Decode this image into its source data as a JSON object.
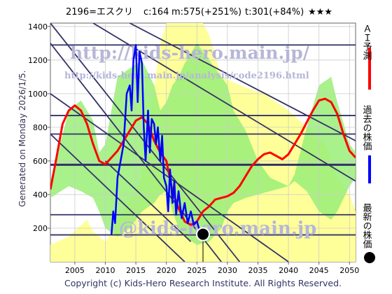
{
  "header": {
    "code_name": "2196=エスクリ",
    "current": "c:164",
    "min_target": "m:575(+251%)",
    "top_target": "t:301(+84%)",
    "rating": "★★★"
  },
  "side_left": "Generated on Monday 2026/1/5.",
  "legend_right": {
    "ai_forecast": "ＡＩ予測",
    "past_price": "過去の株価",
    "latest_price": "最新の株価"
  },
  "watermarks": {
    "main": "http://kids-hero.main.jp/",
    "sub": "http://kids-hero.main.jp/analysis/code2196.html",
    "bottom": "@kids-hero.main.jp"
  },
  "footer": "Copyright (c) Kids-Hero Research Institute. All Rights Reserved.",
  "colors": {
    "ai_forecast": "#ff0000",
    "past_price": "#0000ff",
    "latest_price": "#000000",
    "green_band": "#99ee77",
    "yellow_band": "#ffff99",
    "guide_lines": "#333366"
  },
  "chart_data": {
    "type": "line",
    "xlim": [
      2001,
      2051
    ],
    "ylim": [
      0,
      1420
    ],
    "x_ticks": [
      2005,
      2010,
      2015,
      2020,
      2025,
      2030,
      2035,
      2040,
      2045,
      2050
    ],
    "y_ticks": [
      200,
      400,
      600,
      800,
      1000,
      1200,
      1400
    ],
    "grid": true,
    "horizontal_levels": [
      160,
      280,
      575,
      580,
      760,
      870,
      1290
    ],
    "series": [
      {
        "name": "ＡＩ予測",
        "color": "#ff0000",
        "x": [
          2001,
          2002,
          2003,
          2004,
          2005,
          2006,
          2007,
          2008,
          2009,
          2010,
          2011,
          2012,
          2013,
          2014,
          2015,
          2016,
          2017,
          2018,
          2019,
          2020,
          2021,
          2022,
          2023,
          2024,
          2025,
          2026,
          2027,
          2028,
          2029,
          2030,
          2031,
          2032,
          2033,
          2034,
          2035,
          2036,
          2037,
          2038,
          2039,
          2040,
          2041,
          2042,
          2043,
          2044,
          2045,
          2046,
          2047,
          2048,
          2049,
          2050,
          2051
        ],
        "values": [
          430,
          620,
          820,
          900,
          930,
          900,
          820,
          700,
          600,
          580,
          620,
          660,
          720,
          780,
          840,
          860,
          820,
          720,
          650,
          600,
          420,
          320,
          240,
          220,
          240,
          300,
          330,
          370,
          380,
          390,
          410,
          450,
          510,
          570,
          610,
          640,
          650,
          630,
          610,
          640,
          700,
          760,
          830,
          900,
          960,
          970,
          950,
          880,
          760,
          660,
          620
        ]
      },
      {
        "name": "過去の株価",
        "color": "#0000ff",
        "x": [
          2011.0,
          2011.3,
          2011.6,
          2012.0,
          2012.5,
          2013.0,
          2013.5,
          2014.0,
          2014.3,
          2014.6,
          2015.0,
          2015.3,
          2015.6,
          2016.0,
          2016.3,
          2016.6,
          2017.0,
          2017.3,
          2017.6,
          2018.0,
          2018.3,
          2018.6,
          2019.0,
          2019.3,
          2019.6,
          2020.0,
          2020.3,
          2020.6,
          2021.0,
          2021.3,
          2021.6,
          2022.0,
          2022.5,
          2023.0,
          2023.5,
          2024.0,
          2024.5,
          2025.0,
          2025.5,
          2025.9
        ],
        "values": [
          160,
          300,
          230,
          500,
          600,
          700,
          1000,
          1050,
          900,
          1200,
          1290,
          950,
          1250,
          1180,
          800,
          600,
          900,
          650,
          850,
          820,
          700,
          800,
          600,
          750,
          500,
          450,
          300,
          550,
          350,
          480,
          280,
          420,
          260,
          350,
          230,
          300,
          220,
          240,
          180,
          200
        ]
      }
    ],
    "latest_point": {
      "x": 2026.0,
      "y": 164
    },
    "trend_lines": [
      {
        "from": [
          2001,
          1420
        ],
        "to": [
          2032,
          0
        ]
      },
      {
        "from": [
          2001,
          1300
        ],
        "to": [
          2029,
          0
        ]
      },
      {
        "from": [
          2001,
          1000
        ],
        "to": [
          2040,
          0
        ]
      },
      {
        "from": [
          2001,
          760
        ],
        "to": [
          2023,
          0
        ]
      },
      {
        "from": [
          2008,
          1420
        ],
        "to": [
          2051,
          480
        ]
      },
      {
        "from": [
          2014,
          1420
        ],
        "to": [
          2051,
          720
        ]
      },
      {
        "from": [
          2010,
          600
        ],
        "to": [
          2024,
          120
        ]
      }
    ],
    "green_band": {
      "x": [
        2001,
        2004,
        2006,
        2008,
        2009,
        2010,
        2012,
        2014,
        2016,
        2018,
        2019,
        2020,
        2021,
        2022,
        2023,
        2025,
        2027,
        2029,
        2030,
        2031,
        2033,
        2035,
        2037,
        2040,
        2041,
        2043,
        2045,
        2047,
        2048,
        2050,
        2051
      ],
      "upper": [
        480,
        900,
        960,
        840,
        650,
        700,
        1100,
        1150,
        1200,
        1050,
        900,
        950,
        1050,
        1100,
        1180,
        1300,
        1200,
        1100,
        1050,
        900,
        780,
        600,
        500,
        450,
        520,
        800,
        1050,
        1100,
        950,
        700,
        650
      ],
      "lower": [
        380,
        450,
        420,
        380,
        300,
        200,
        150,
        200,
        300,
        350,
        400,
        420,
        300,
        200,
        150,
        100,
        120,
        200,
        300,
        350,
        380,
        400,
        420,
        450,
        480,
        420,
        300,
        250,
        300,
        450,
        500
      ]
    },
    "yellow_band": {
      "x": [
        2001,
        2004,
        2007,
        2008,
        2010,
        2013,
        2016,
        2019,
        2020,
        2022,
        2024,
        2026,
        2027,
        2029,
        2032,
        2036,
        2040,
        2043,
        2046,
        2048,
        2050,
        2051
      ],
      "upper": [
        100,
        150,
        250,
        180,
        120,
        300,
        500,
        1300,
        1420,
        1420,
        1420,
        1420,
        1350,
        1100,
        1050,
        1000,
        900,
        800,
        700,
        500,
        400,
        300
      ],
      "lower": [
        0,
        0,
        0,
        0,
        0,
        0,
        0,
        0,
        0,
        0,
        0,
        0,
        0,
        0,
        0,
        0,
        0,
        0,
        0,
        0,
        0,
        0
      ]
    }
  }
}
